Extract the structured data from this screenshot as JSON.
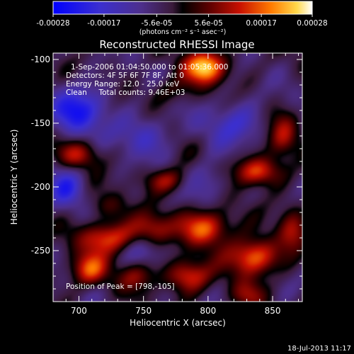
{
  "chart_data": {
    "type": "heatmap",
    "title": "Reconstructed RHESSI Image",
    "xlabel": "Heliocentric X (arcsec)",
    "ylabel": "Heliocentric Y (arcsec)",
    "xlim": [
      680,
      873
    ],
    "ylim": [
      -290,
      -95
    ],
    "x_ticks": [
      700,
      750,
      800,
      850
    ],
    "y_ticks": [
      -100,
      -150,
      -200,
      -250
    ],
    "colorbar": {
      "range": [
        -0.00028,
        0.00028
      ],
      "tick_values": [
        -0.00028,
        -0.00017,
        -5.6e-05,
        5.6e-05,
        0.00017,
        0.00028
      ],
      "tick_labels": [
        "-0.00028",
        "-0.00017",
        "-5.6e-05",
        "5.6e-05",
        "0.00017",
        "0.00028"
      ],
      "unit": "(photons cm⁻² s⁻¹ asec⁻²)"
    },
    "annotations": {
      "time_range": "1-Sep-2006 01:04:50.000 to 01:05:36.000",
      "detectors": "Detectors: 4F 5F 6F 7F 8F, Att 0",
      "energy_range": "Energy Range: 12.0 - 25.0 keV",
      "algorithm": "Clean     Total counts: 9.46E+03",
      "peak": "Position of Peak = [798,-105]"
    },
    "blobs": [
      {
        "x": 798,
        "y": -106,
        "amp": 1.15,
        "sx": 11,
        "sy": 9
      },
      {
        "x": 770,
        "y": -125,
        "amp": 0.3,
        "sx": 12,
        "sy": 8
      },
      {
        "x": 838,
        "y": -188,
        "amp": 0.8,
        "sx": 13,
        "sy": 8
      },
      {
        "x": 858,
        "y": -160,
        "amp": 0.55,
        "sx": 8,
        "sy": 12
      },
      {
        "x": 700,
        "y": -175,
        "amp": 0.55,
        "sx": 12,
        "sy": 8
      },
      {
        "x": 768,
        "y": -195,
        "amp": 0.55,
        "sx": 12,
        "sy": 7
      },
      {
        "x": 722,
        "y": -215,
        "amp": 0.25,
        "sx": 12,
        "sy": 7
      },
      {
        "x": 722,
        "y": -240,
        "amp": 0.8,
        "sx": 15,
        "sy": 9
      },
      {
        "x": 757,
        "y": -232,
        "amp": 0.55,
        "sx": 11,
        "sy": 9
      },
      {
        "x": 798,
        "y": -232,
        "amp": 0.85,
        "sx": 14,
        "sy": 10
      },
      {
        "x": 835,
        "y": -255,
        "amp": 0.95,
        "sx": 13,
        "sy": 10
      },
      {
        "x": 865,
        "y": -235,
        "amp": 0.55,
        "sx": 8,
        "sy": 12
      },
      {
        "x": 708,
        "y": -265,
        "amp": 0.75,
        "sx": 10,
        "sy": 9
      },
      {
        "x": 745,
        "y": -270,
        "amp": 0.45,
        "sx": 10,
        "sy": 8
      },
      {
        "x": 785,
        "y": -270,
        "amp": 0.75,
        "sx": 12,
        "sy": 9
      },
      {
        "x": 830,
        "y": -285,
        "amp": 0.4,
        "sx": 10,
        "sy": 8
      },
      {
        "x": 700,
        "y": -140,
        "amp": -0.7,
        "sx": 15,
        "sy": 13
      },
      {
        "x": 750,
        "y": -160,
        "amp": -0.4,
        "sx": 15,
        "sy": 12
      },
      {
        "x": 820,
        "y": -150,
        "amp": -0.45,
        "sx": 15,
        "sy": 12
      },
      {
        "x": 690,
        "y": -200,
        "amp": -0.5,
        "sx": 10,
        "sy": 12
      },
      {
        "x": 800,
        "y": -195,
        "amp": -0.35,
        "sx": 12,
        "sy": 10
      },
      {
        "x": 750,
        "y": -250,
        "amp": -0.3,
        "sx": 10,
        "sy": 8
      }
    ]
  },
  "footer": {
    "timestamp": "18-Jul-2013 11:17"
  }
}
